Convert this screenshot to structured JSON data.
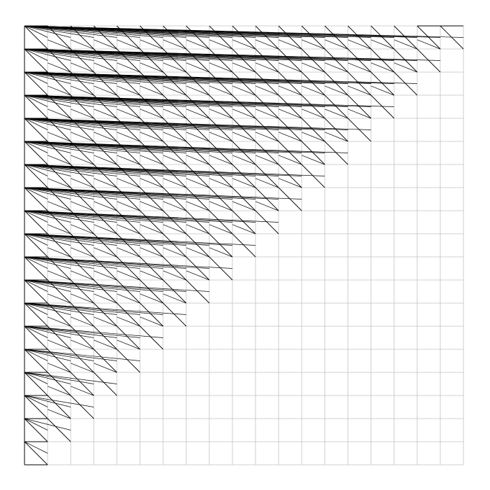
{
  "chart_data": {
    "type": "diagram",
    "description_visible": "",
    "grid": {
      "columns": 19,
      "rows": 19,
      "shown": true
    },
    "colors": {
      "background": "#ffffff",
      "grid": "#c0c0c0",
      "lines": "#000000"
    },
    "rows": [
      {
        "row": 0,
        "length": 19
      },
      {
        "row": 1,
        "length": 18
      },
      {
        "row": 2,
        "length": 17
      },
      {
        "row": 3,
        "length": 16
      },
      {
        "row": 4,
        "length": 15
      },
      {
        "row": 5,
        "length": 14
      },
      {
        "row": 6,
        "length": 13
      },
      {
        "row": 7,
        "length": 12
      },
      {
        "row": 8,
        "length": 11
      },
      {
        "row": 9,
        "length": 10
      },
      {
        "row": 10,
        "length": 9
      },
      {
        "row": 11,
        "length": 8
      },
      {
        "row": 12,
        "length": 7
      },
      {
        "row": 13,
        "length": 6
      },
      {
        "row": 14,
        "length": 5
      },
      {
        "row": 15,
        "length": 4
      },
      {
        "row": 16,
        "length": 3
      },
      {
        "row": 17,
        "length": 2
      },
      {
        "row": 18,
        "length": 1
      }
    ]
  }
}
